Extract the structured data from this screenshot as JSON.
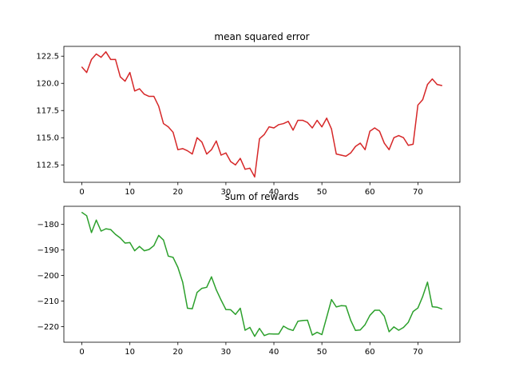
{
  "chart_data": [
    {
      "type": "line",
      "title": "mean squared error",
      "xlabel": "",
      "ylabel": "",
      "grid": false,
      "xlim": [
        -3.75,
        78.75
      ],
      "ylim": [
        110.9,
        123.4
      ],
      "xticks": [
        0,
        10,
        20,
        30,
        40,
        50,
        60,
        70
      ],
      "xtick_labels": [
        "0",
        "10",
        "20",
        "30",
        "40",
        "50",
        "60",
        "70"
      ],
      "yticks": [
        112.5,
        115.0,
        117.5,
        120.0,
        122.5
      ],
      "ytick_labels": [
        "112.5",
        "115.0",
        "117.5",
        "120.0",
        "122.5"
      ],
      "series": [
        {
          "color": "#d62728",
          "x": [
            0,
            1,
            2,
            3,
            4,
            5,
            6,
            7,
            8,
            9,
            10,
            11,
            12,
            13,
            14,
            15,
            16,
            17,
            18,
            19,
            20,
            21,
            22,
            23,
            24,
            25,
            26,
            27,
            28,
            29,
            30,
            31,
            32,
            33,
            34,
            35,
            36,
            37,
            38,
            39,
            40,
            41,
            42,
            43,
            44,
            45,
            46,
            47,
            48,
            49,
            50,
            51,
            52,
            53,
            54,
            55,
            56,
            57,
            58,
            59,
            60,
            61,
            62,
            63,
            64,
            65,
            66,
            67,
            68,
            69,
            70,
            71,
            72,
            73,
            74,
            75
          ],
          "y": [
            121.5,
            121.0,
            122.2,
            122.7,
            122.4,
            122.9,
            122.2,
            122.2,
            120.6,
            120.2,
            121.0,
            119.3,
            119.5,
            119.0,
            118.8,
            118.8,
            117.9,
            116.3,
            116.0,
            115.5,
            113.9,
            114.0,
            113.8,
            113.5,
            115.0,
            114.6,
            113.5,
            113.9,
            114.7,
            113.4,
            113.6,
            112.8,
            112.5,
            113.1,
            112.1,
            112.2,
            111.4,
            114.9,
            115.3,
            116.0,
            115.9,
            116.2,
            116.3,
            116.5,
            115.7,
            116.6,
            116.6,
            116.4,
            115.9,
            116.6,
            116.0,
            116.8,
            115.8,
            113.5,
            113.4,
            113.3,
            113.6,
            114.2,
            114.5,
            113.9,
            115.6,
            115.9,
            115.6,
            114.5,
            113.9,
            115.0,
            115.2,
            115.0,
            114.3,
            114.4,
            118.0,
            118.5,
            119.9,
            120.4,
            119.9,
            119.8
          ]
        }
      ]
    },
    {
      "type": "line",
      "title": "sum of rewards",
      "xlabel": "",
      "ylabel": "",
      "grid": false,
      "xlim": [
        -3.75,
        78.75
      ],
      "ylim": [
        -226.1,
        -172.9
      ],
      "xticks": [
        0,
        10,
        20,
        30,
        40,
        50,
        60,
        70
      ],
      "xtick_labels": [
        "0",
        "10",
        "20",
        "30",
        "40",
        "50",
        "60",
        "70"
      ],
      "yticks": [
        -220,
        -210,
        -200,
        -190,
        -180
      ],
      "ytick_labels": [
        "−220",
        "−210",
        "−200",
        "−190",
        "−180"
      ],
      "series": [
        {
          "color": "#2ca02c",
          "x": [
            0,
            1,
            2,
            3,
            4,
            5,
            6,
            7,
            8,
            9,
            10,
            11,
            12,
            13,
            14,
            15,
            16,
            17,
            18,
            19,
            20,
            21,
            22,
            23,
            24,
            25,
            26,
            27,
            28,
            29,
            30,
            31,
            32,
            33,
            34,
            35,
            36,
            37,
            38,
            39,
            40,
            41,
            42,
            43,
            44,
            45,
            46,
            47,
            48,
            49,
            50,
            51,
            52,
            53,
            54,
            55,
            56,
            57,
            58,
            59,
            60,
            61,
            62,
            63,
            64,
            65,
            66,
            67,
            68,
            69,
            70,
            71,
            72,
            73,
            74,
            75
          ],
          "y": [
            -175.3,
            -176.6,
            -183.2,
            -178.3,
            -182.6,
            -181.7,
            -182.0,
            -183.9,
            -185.3,
            -187.3,
            -187.1,
            -190.3,
            -188.6,
            -190.3,
            -189.8,
            -188.3,
            -184.3,
            -186.1,
            -192.4,
            -192.9,
            -196.8,
            -202.6,
            -212.8,
            -213.0,
            -206.6,
            -205.0,
            -204.6,
            -200.5,
            -205.6,
            -209.6,
            -213.3,
            -213.4,
            -215.2,
            -212.8,
            -221.4,
            -220.3,
            -223.8,
            -220.7,
            -223.5,
            -222.8,
            -222.9,
            -222.9,
            -219.8,
            -220.9,
            -221.5,
            -217.9,
            -217.6,
            -217.5,
            -223.3,
            -222.2,
            -223.1,
            -216.3,
            -209.4,
            -212.3,
            -211.8,
            -211.9,
            -217.5,
            -221.5,
            -221.3,
            -219.2,
            -215.6,
            -213.6,
            -213.6,
            -215.9,
            -222.0,
            -220.1,
            -221.4,
            -220.3,
            -218.3,
            -214.1,
            -212.7,
            -208.2,
            -202.6,
            -212.2,
            -212.4,
            -213.1
          ]
        }
      ]
    }
  ]
}
